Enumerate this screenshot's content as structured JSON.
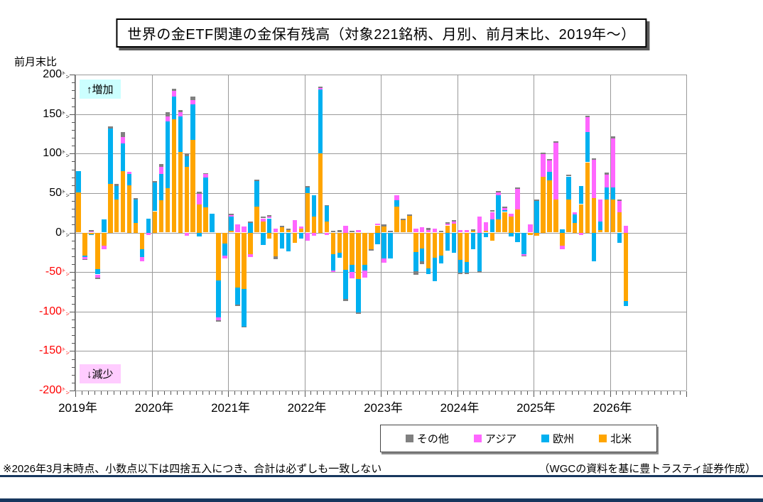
{
  "annotations": {
    "increase": "↑増加",
    "decrease": "↓減少"
  },
  "footer": {
    "note": "※2026年3月末時点、小数点以下は四捨五入につき、合計は必ずしも一致しない",
    "credit": "（WGCの資料を基に豊トラスティ証券作成）"
  },
  "chart_data": {
    "type": "bar",
    "stacked": true,
    "title": "世界の金ETF関連の金保有残高（対象221銘柄、月別、前月末比、2019年～）",
    "ylabel": "前月末比",
    "unit_char": "㌧",
    "ylim": [
      -200,
      200
    ],
    "ytick_step": 50,
    "grid": true,
    "legend_position": "bottom",
    "negative_tick_color": "#FF0000",
    "x_year_labels": [
      "2019年",
      "2020年",
      "2021年",
      "2022年",
      "2023年",
      "2024年",
      "2025年",
      "2026年"
    ],
    "x_axis_total_months": 96,
    "categories": [
      "2019-01",
      "2019-02",
      "2019-03",
      "2019-04",
      "2019-05",
      "2019-06",
      "2019-07",
      "2019-08",
      "2019-09",
      "2019-10",
      "2019-11",
      "2019-12",
      "2020-01",
      "2020-02",
      "2020-03",
      "2020-04",
      "2020-05",
      "2020-06",
      "2020-07",
      "2020-08",
      "2020-09",
      "2020-10",
      "2020-11",
      "2020-12",
      "2021-01",
      "2021-02",
      "2021-03",
      "2021-04",
      "2021-05",
      "2021-06",
      "2021-07",
      "2021-08",
      "2021-09",
      "2021-10",
      "2021-11",
      "2021-12",
      "2022-01",
      "2022-02",
      "2022-03",
      "2022-04",
      "2022-05",
      "2022-06",
      "2022-07",
      "2022-08",
      "2022-09",
      "2022-10",
      "2022-11",
      "2022-12",
      "2023-01",
      "2023-02",
      "2023-03",
      "2023-04",
      "2023-05",
      "2023-06",
      "2023-07",
      "2023-08",
      "2023-09",
      "2023-10",
      "2023-11",
      "2023-12",
      "2024-01",
      "2024-02",
      "2024-03",
      "2024-04",
      "2024-05",
      "2024-06",
      "2024-07",
      "2024-08",
      "2024-09",
      "2024-10",
      "2024-11",
      "2024-12",
      "2025-01",
      "2025-02",
      "2025-03",
      "2025-04",
      "2025-05",
      "2025-06",
      "2025-07",
      "2025-08",
      "2025-09",
      "2025-10",
      "2025-11",
      "2025-12",
      "2026-01",
      "2026-02",
      "2026-03"
    ],
    "series": [
      {
        "name": "北米",
        "color": "#FFA500",
        "values": [
          51,
          -29,
          -2,
          -46,
          -17,
          62,
          42,
          78,
          60,
          12,
          -21,
          0,
          27,
          41,
          56,
          143,
          102,
          83,
          117,
          36,
          32,
          0,
          -61,
          -14,
          2,
          -70,
          -71,
          -27,
          33,
          14,
          -8,
          -30,
          7,
          3,
          -13,
          5,
          50,
          20,
          100,
          14,
          -27,
          -26,
          -47,
          -41,
          -59,
          -41,
          -21,
          9,
          8,
          0,
          33,
          16,
          21,
          -25,
          -20,
          -45,
          -32,
          -29,
          9,
          11,
          -35,
          -37,
          2,
          0,
          2,
          -10,
          17,
          26,
          20,
          29,
          0,
          -3,
          -4,
          71,
          66,
          42,
          -17,
          42,
          12,
          36,
          89,
          44,
          3,
          42,
          42,
          26,
          -87
        ]
      },
      {
        "name": "欧州",
        "color": "#00B0F0",
        "values": [
          27,
          -2,
          -1,
          -7,
          17,
          70,
          17,
          35,
          14,
          30,
          -10,
          18,
          36,
          33,
          85,
          29,
          45,
          14,
          45,
          -5,
          38,
          24,
          -46,
          -15,
          18,
          -21,
          -48,
          12,
          32,
          -16,
          18,
          0,
          -20,
          -24,
          0,
          -8,
          7,
          27,
          81,
          20,
          -21,
          -6,
          -37,
          -9,
          -42,
          -7,
          0,
          -15,
          -33,
          -33,
          8,
          0,
          0,
          -24,
          -16,
          -8,
          -30,
          -10,
          -23,
          -26,
          -16,
          -14,
          -21,
          -49,
          -6,
          17,
          30,
          2,
          -5,
          -12,
          -27,
          0,
          40,
          0,
          11,
          0,
          4,
          29,
          11,
          23,
          38,
          -36,
          11,
          15,
          15,
          -13,
          -6
        ]
      },
      {
        "name": "アジア",
        "color": "#FF66FF",
        "values": [
          0,
          -3,
          1,
          -4,
          -4,
          0,
          0,
          8,
          3,
          0,
          -5,
          -3,
          0,
          9,
          6,
          7,
          5,
          -4,
          6,
          13,
          4,
          0,
          -4,
          -4,
          2,
          10,
          8,
          -4,
          0,
          4,
          2,
          5,
          0,
          0,
          16,
          3,
          -10,
          -4,
          2,
          -3,
          -2,
          0,
          9,
          -8,
          3,
          -9,
          0,
          2,
          -5,
          0,
          6,
          0,
          0,
          5,
          7,
          3,
          5,
          0,
          2,
          3,
          3,
          3,
          0,
          20,
          11,
          9,
          4,
          3,
          4,
          26,
          -2,
          10,
          0,
          28,
          14,
          72,
          -4,
          0,
          3,
          -3,
          19,
          48,
          28,
          16,
          62,
          14,
          9
        ]
      },
      {
        "name": "その他",
        "color": "#808080",
        "values": [
          0,
          -1,
          2,
          -2,
          0,
          2,
          3,
          6,
          0,
          2,
          0,
          0,
          2,
          4,
          5,
          3,
          3,
          3,
          4,
          3,
          1,
          0,
          -2,
          0,
          2,
          -2,
          -1,
          2,
          2,
          2,
          2,
          -4,
          2,
          2,
          0,
          0,
          2,
          0,
          2,
          1,
          2,
          3,
          -3,
          2,
          -2,
          0,
          -2,
          0,
          2,
          2,
          0,
          2,
          2,
          -4,
          -4,
          3,
          0,
          2,
          2,
          2,
          -2,
          -2,
          2,
          -2,
          0,
          2,
          2,
          2,
          0,
          2,
          -1,
          0,
          2,
          2,
          2,
          2,
          0,
          2,
          0,
          0,
          2,
          2,
          0,
          3,
          3,
          2,
          0
        ]
      }
    ],
    "legend": [
      {
        "label": "その他",
        "color": "#808080"
      },
      {
        "label": "アジア",
        "color": "#FF66FF"
      },
      {
        "label": "欧州",
        "color": "#00B0F0"
      },
      {
        "label": "北米",
        "color": "#FFA500"
      }
    ]
  }
}
